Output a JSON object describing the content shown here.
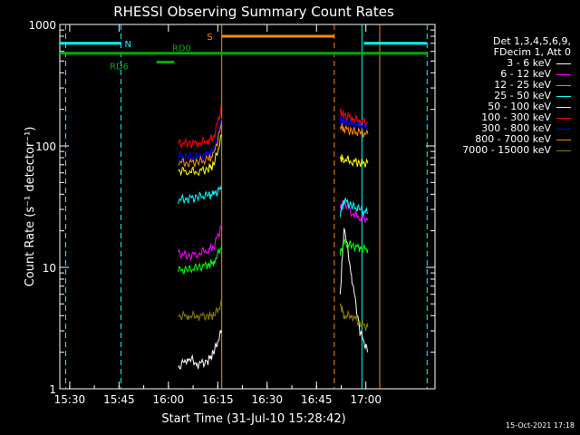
{
  "chart_data": {
    "type": "line",
    "title": "RHESSI Observing Summary Count Rates",
    "xlabel": "Start Time (31-Jul-10 15:28:42)",
    "ylabel": "Count Rate (s⁻¹ detector⁻¹)",
    "yscale": "log",
    "ylim": [
      1,
      1000
    ],
    "xlim": [
      15.45,
      17.35
    ],
    "x_ticks": [
      {
        "value": 15.5,
        "label": "15:30"
      },
      {
        "value": 15.75,
        "label": "15:45"
      },
      {
        "value": 16.0,
        "label": "16:00"
      },
      {
        "value": 16.25,
        "label": "16:15"
      },
      {
        "value": 16.5,
        "label": "16:30"
      },
      {
        "value": 16.75,
        "label": "16:45"
      },
      {
        "value": 17.0,
        "label": "17:00"
      }
    ],
    "y_ticks": [
      {
        "value": 1,
        "label": "1"
      },
      {
        "value": 10,
        "label": "10"
      },
      {
        "value": 100,
        "label": "100"
      },
      {
        "value": 1000,
        "label": "1000"
      }
    ],
    "legend_header": [
      "Det 1,3,4,5,6,9,",
      "FDecim 1, Att 0"
    ],
    "series": [
      {
        "name": "3 - 6 keV",
        "color": "#ffffff",
        "segments": [
          {
            "x": [
              16.05,
              16.1,
              16.15,
              16.2,
              16.23,
              16.27
            ],
            "y": [
              1.5,
              1.8,
              1.6,
              1.7,
              2.0,
              3.0
            ]
          },
          {
            "x": [
              16.87,
              16.89,
              16.93,
              16.97,
              17.01
            ],
            "y": [
              6,
              22,
              8,
              3,
              2
            ]
          }
        ]
      },
      {
        "name": "6 - 12 keV",
        "color": "#ff00ff",
        "segments": [
          {
            "x": [
              16.05,
              16.1,
              16.15,
              16.2,
              16.23,
              16.27
            ],
            "y": [
              13,
              12.5,
              13,
              14,
              15,
              22
            ]
          },
          {
            "x": [
              16.87,
              16.89,
              16.93,
              16.97,
              17.01
            ],
            "y": [
              30,
              35,
              28,
              26,
              25
            ]
          }
        ]
      },
      {
        "name": "12 - 25 keV",
        "color": "#00ff00",
        "segments": [
          {
            "x": [
              16.05,
              16.1,
              16.15,
              16.2,
              16.23,
              16.27
            ],
            "y": [
              9.5,
              9.5,
              10,
              10.5,
              11,
              15
            ]
          },
          {
            "x": [
              16.87,
              16.89,
              16.93,
              16.97,
              17.01
            ],
            "y": [
              13,
              16,
              15,
              14.5,
              14
            ]
          }
        ]
      },
      {
        "name": "25 - 50 keV",
        "color": "#00ffff",
        "segments": [
          {
            "x": [
              16.05,
              16.1,
              16.15,
              16.2,
              16.23,
              16.27
            ],
            "y": [
              36,
              37,
              38,
              39,
              40,
              45
            ]
          },
          {
            "x": [
              16.87,
              16.89,
              16.93,
              16.97,
              17.01
            ],
            "y": [
              28,
              36,
              32,
              30,
              28
            ]
          }
        ]
      },
      {
        "name": "50 - 100 keV",
        "color": "#ffff00",
        "segments": [
          {
            "x": [
              16.05,
              16.1,
              16.15,
              16.2,
              16.23,
              16.27
            ],
            "y": [
              63,
              62,
              62,
              65,
              70,
              120
            ]
          },
          {
            "x": [
              16.87,
              16.89,
              16.93,
              16.97,
              17.01
            ],
            "y": [
              80,
              78,
              75,
              73,
              72
            ]
          }
        ]
      },
      {
        "name": "100 - 300 keV",
        "color": "#ff0000",
        "segments": [
          {
            "x": [
              16.05,
              16.1,
              16.15,
              16.2,
              16.23,
              16.27
            ],
            "y": [
              105,
              105,
              106,
              110,
              120,
              210
            ]
          },
          {
            "x": [
              16.87,
              16.89,
              16.93,
              16.97,
              17.01
            ],
            "y": [
              190,
              180,
              170,
              160,
              155
            ]
          }
        ]
      },
      {
        "name": "300 - 800 keV",
        "color": "#0000ff",
        "segments": [
          {
            "x": [
              16.05,
              16.1,
              16.15,
              16.2,
              16.23,
              16.27
            ],
            "y": [
              82,
              81,
              82,
              85,
              92,
              170
            ]
          },
          {
            "x": [
              16.87,
              16.89,
              16.93,
              16.97,
              17.01
            ],
            "y": [
              165,
              160,
              150,
              145,
              140
            ]
          }
        ]
      },
      {
        "name": "800 - 7000 keV",
        "color": "#ff8c00",
        "segments": [
          {
            "x": [
              16.05,
              16.1,
              16.15,
              16.2,
              16.23,
              16.27
            ],
            "y": [
              74,
              73,
              74,
              77,
              84,
              150
            ]
          },
          {
            "x": [
              16.87,
              16.89,
              16.93,
              16.97,
              17.01
            ],
            "y": [
              145,
              140,
              132,
              128,
              125
            ]
          }
        ]
      },
      {
        "name": "7000 - 15000 keV",
        "color": "#8b7d00",
        "segments": [
          {
            "x": [
              16.05,
              16.1,
              16.15,
              16.2,
              16.23,
              16.27
            ],
            "y": [
              4,
              4,
              4,
              4,
              4,
              5
            ]
          },
          {
            "x": [
              16.87,
              16.89,
              16.93,
              16.97,
              17.01
            ],
            "y": [
              5,
              4,
              4,
              3.5,
              3.2
            ]
          }
        ]
      }
    ],
    "annotations": [
      {
        "label": "N",
        "color": "#00ffff",
        "x": 15.76,
        "value": 700
      },
      {
        "label": "S",
        "color": "#ff8c00",
        "x": 16.25,
        "value": 800
      },
      {
        "label": "RD0",
        "color": "#00aa00",
        "x": 16.0,
        "value": 580
      },
      {
        "label": "RD6",
        "color": "#00aa00",
        "x": 15.84,
        "value": 490
      }
    ],
    "spans": [
      {
        "color": "#00ffff",
        "x0": 15.45,
        "x1": 15.76,
        "value": 700
      },
      {
        "color": "#00ffff",
        "x0": 16.99,
        "x1": 17.31,
        "value": 700
      },
      {
        "color": "#ff8c00",
        "x0": 16.27,
        "x1": 16.84,
        "value": 800
      },
      {
        "color": "#00aa00",
        "x0": 15.45,
        "x1": 17.31,
        "value": 580
      },
      {
        "color": "#00aa00",
        "x0": 15.94,
        "x1": 16.03,
        "value": 490
      }
    ],
    "vlines": [
      {
        "color": "#00ffff",
        "x": 15.48,
        "style": "dash"
      },
      {
        "color": "#00ffff",
        "x": 15.76,
        "style": "dash"
      },
      {
        "color": "#00ffff",
        "x": 16.98,
        "style": "solid"
      },
      {
        "color": "#00ffff",
        "x": 17.31,
        "style": "dash"
      },
      {
        "color": "#ff8c00",
        "x": 16.27,
        "style": "solid"
      },
      {
        "color": "#ff8c00",
        "x": 16.84,
        "style": "dash"
      },
      {
        "color": "#ff8c00",
        "x": 17.07,
        "style": "solid"
      }
    ]
  },
  "timestamp": "15-Oct-2021 17:18"
}
